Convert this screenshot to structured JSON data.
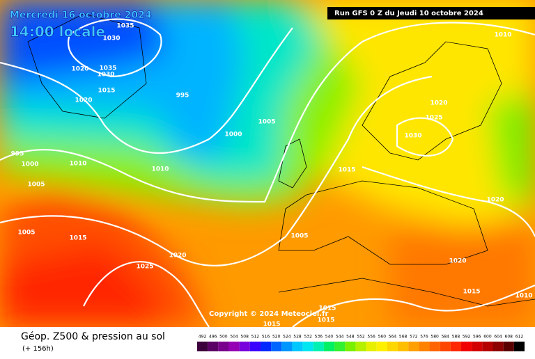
{
  "header": {
    "date": "Mercredi 16 octobre 2024",
    "time": "14:00 locale",
    "run": "Run GFS 0 Z du Jeudi 10 octobre 2024"
  },
  "copyright": "Copyright © 2024 Meteociel.fr",
  "footer": {
    "title": "Géop. Z500 & pression au sol",
    "lead": "(+ 156h)"
  },
  "isobar_labels": [
    1035,
    1030,
    1035,
    1030,
    1020,
    1015,
    1020,
    995,
    1000,
    1005,
    995,
    1000,
    1010,
    1010,
    1005,
    1005,
    1015,
    1025,
    1020,
    1005,
    1015,
    1020,
    1025,
    1030,
    1020,
    1020,
    1015,
    1010,
    1010,
    1015,
    1015,
    1015
  ],
  "legend": {
    "values": [
      492,
      496,
      500,
      504,
      508,
      512,
      516,
      520,
      524,
      528,
      532,
      536,
      540,
      544,
      548,
      552,
      556,
      560,
      564,
      568,
      572,
      576,
      580,
      584,
      588,
      592,
      596,
      600,
      604,
      608,
      612
    ],
    "colors": [
      "#3c003c",
      "#5a0064",
      "#78008c",
      "#9600b4",
      "#7800dc",
      "#3c00ff",
      "#0028ff",
      "#0064ff",
      "#0096ff",
      "#00c8ff",
      "#00e6f0",
      "#00f0b4",
      "#00f064",
      "#32f032",
      "#78f000",
      "#b4f000",
      "#e6f000",
      "#fff000",
      "#ffd700",
      "#ffbe00",
      "#ffa000",
      "#ff8200",
      "#ff6400",
      "#ff4600",
      "#ff2800",
      "#f00000",
      "#d20000",
      "#b40000",
      "#8c0000",
      "#5a0000",
      "#000000"
    ]
  }
}
